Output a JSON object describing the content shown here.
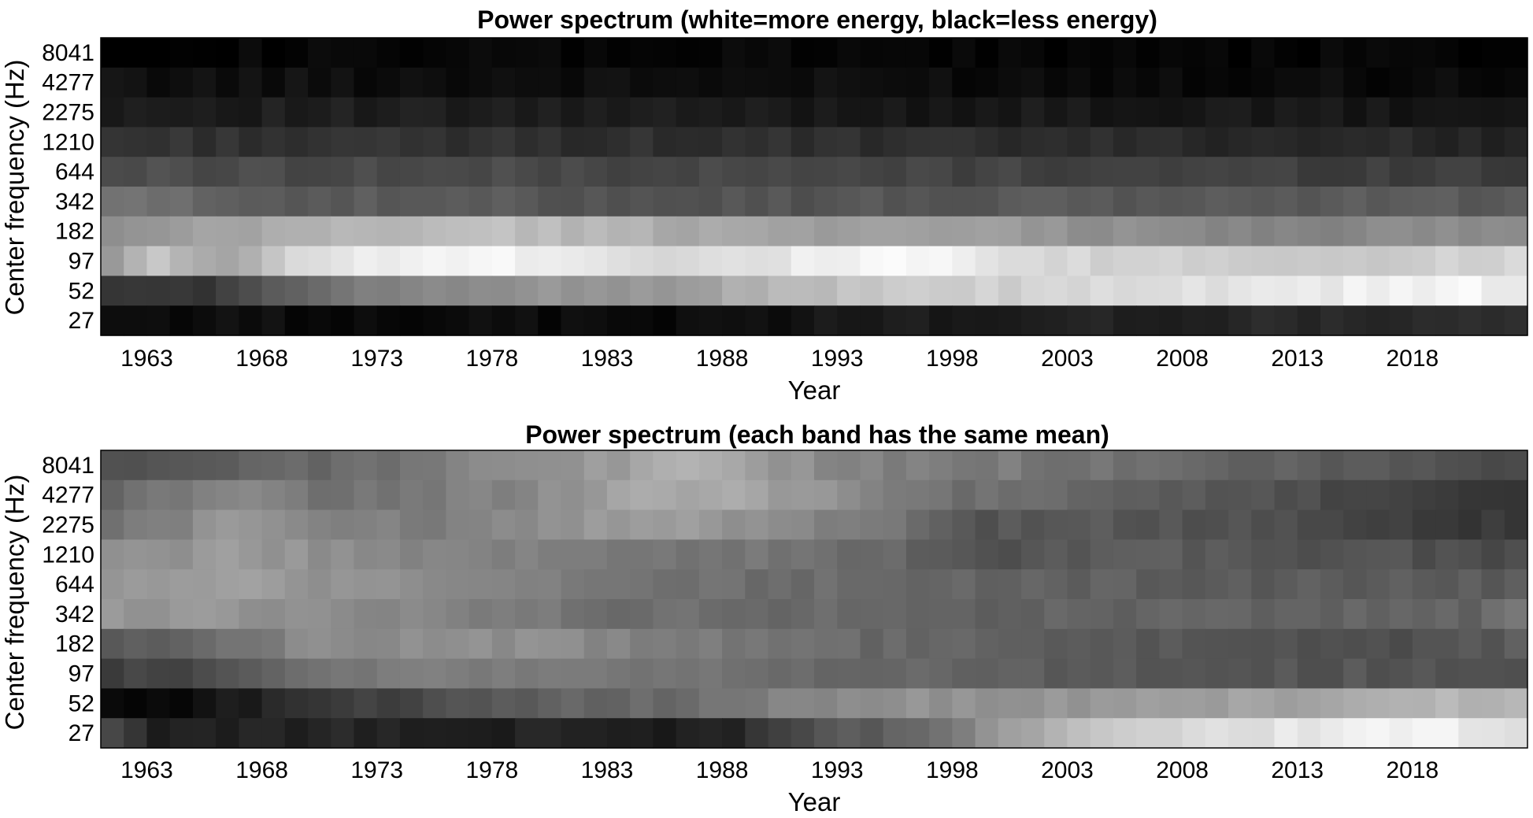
{
  "chart_data": [
    {
      "type": "heatmap",
      "title": "Power spectrum (white=more energy, black=less energy)",
      "xlabel": "Year",
      "ylabel": "Center frequency (Hz)",
      "xticks": [
        "1963",
        "1968",
        "1973",
        "1978",
        "1983",
        "1988",
        "1993",
        "1998",
        "2003",
        "2008",
        "2013",
        "2018"
      ],
      "xlim": [
        1961,
        2023
      ],
      "x_first": 1961,
      "x_last": 2022,
      "colormap": "gray (white=high, black=low)",
      "rows": [
        {
          "label": "8041",
          "keyframes": [
            [
              1961,
              0.02
            ],
            [
              2022,
              0.02
            ]
          ]
        },
        {
          "label": "4277",
          "keyframes": [
            [
              1961,
              0.06
            ],
            [
              1990,
              0.05
            ],
            [
              2022,
              0.04
            ]
          ]
        },
        {
          "label": "2275",
          "keyframes": [
            [
              1961,
              0.12
            ],
            [
              1990,
              0.1
            ],
            [
              2022,
              0.08
            ]
          ]
        },
        {
          "label": "1210",
          "keyframes": [
            [
              1961,
              0.2
            ],
            [
              1990,
              0.18
            ],
            [
              2022,
              0.15
            ]
          ]
        },
        {
          "label": "644",
          "keyframes": [
            [
              1961,
              0.3
            ],
            [
              1990,
              0.27
            ],
            [
              2022,
              0.24
            ]
          ]
        },
        {
          "label": "342",
          "keyframes": [
            [
              1961,
              0.45
            ],
            [
              1963,
              0.42
            ],
            [
              1970,
              0.35
            ],
            [
              1990,
              0.33
            ],
            [
              2022,
              0.36
            ]
          ]
        },
        {
          "label": "182",
          "keyframes": [
            [
              1961,
              0.55
            ],
            [
              1970,
              0.7
            ],
            [
              1978,
              0.75
            ],
            [
              1988,
              0.65
            ],
            [
              2000,
              0.6
            ],
            [
              2010,
              0.52
            ],
            [
              2022,
              0.55
            ]
          ]
        },
        {
          "label": "97",
          "keyframes": [
            [
              1961,
              0.62
            ],
            [
              1963,
              0.78
            ],
            [
              1966,
              0.62
            ],
            [
              1968,
              0.8
            ],
            [
              1972,
              0.93
            ],
            [
              1975,
              0.98
            ],
            [
              1980,
              0.94
            ],
            [
              1985,
              0.86
            ],
            [
              1990,
              0.9
            ],
            [
              1994,
              0.97
            ],
            [
              1998,
              0.93
            ],
            [
              2000,
              0.85
            ],
            [
              2005,
              0.82
            ],
            [
              2012,
              0.8
            ],
            [
              2018,
              0.8
            ],
            [
              2022,
              0.84
            ]
          ]
        },
        {
          "label": "52",
          "keyframes": [
            [
              1961,
              0.22
            ],
            [
              1964,
              0.2
            ],
            [
              1966,
              0.25
            ],
            [
              1970,
              0.42
            ],
            [
              1975,
              0.55
            ],
            [
              1980,
              0.58
            ],
            [
              1985,
              0.6
            ],
            [
              1990,
              0.72
            ],
            [
              1995,
              0.78
            ],
            [
              2000,
              0.82
            ],
            [
              2005,
              0.85
            ],
            [
              2010,
              0.88
            ],
            [
              2015,
              0.93
            ],
            [
              2020,
              0.97
            ],
            [
              2022,
              0.9
            ]
          ]
        },
        {
          "label": "27",
          "keyframes": [
            [
              1961,
              0.05
            ],
            [
              1985,
              0.04
            ],
            [
              1995,
              0.1
            ],
            [
              2005,
              0.13
            ],
            [
              2015,
              0.16
            ],
            [
              2022,
              0.17
            ]
          ]
        }
      ]
    },
    {
      "type": "heatmap",
      "title": "Power spectrum (each band has the same mean)",
      "xlabel": "Year",
      "ylabel": "Center frequency (Hz)",
      "xticks": [
        "1963",
        "1968",
        "1973",
        "1978",
        "1983",
        "1988",
        "1993",
        "1998",
        "2003",
        "2008",
        "2013",
        "2018"
      ],
      "xlim": [
        1961,
        2023
      ],
      "x_first": 1961,
      "x_last": 2022,
      "colormap": "gray (white=high, black=low)",
      "rows": [
        {
          "label": "8041",
          "keyframes": [
            [
              1961,
              0.32
            ],
            [
              1966,
              0.36
            ],
            [
              1972,
              0.43
            ],
            [
              1978,
              0.55
            ],
            [
              1983,
              0.62
            ],
            [
              1986,
              0.68
            ],
            [
              1990,
              0.58
            ],
            [
              1995,
              0.5
            ],
            [
              2000,
              0.48
            ],
            [
              2008,
              0.4
            ],
            [
              2015,
              0.35
            ],
            [
              2022,
              0.3
            ]
          ]
        },
        {
          "label": "4277",
          "keyframes": [
            [
              1961,
              0.38
            ],
            [
              1966,
              0.55
            ],
            [
              1970,
              0.45
            ],
            [
              1975,
              0.47
            ],
            [
              1980,
              0.56
            ],
            [
              1984,
              0.66
            ],
            [
              1988,
              0.65
            ],
            [
              1991,
              0.6
            ],
            [
              1996,
              0.45
            ],
            [
              2000,
              0.42
            ],
            [
              2010,
              0.32
            ],
            [
              2018,
              0.25
            ],
            [
              2022,
              0.2
            ]
          ]
        },
        {
          "label": "2275",
          "keyframes": [
            [
              1961,
              0.45
            ],
            [
              1966,
              0.58
            ],
            [
              1970,
              0.5
            ],
            [
              1976,
              0.5
            ],
            [
              1982,
              0.6
            ],
            [
              1986,
              0.62
            ],
            [
              1990,
              0.55
            ],
            [
              1995,
              0.45
            ],
            [
              1998,
              0.32
            ],
            [
              2003,
              0.35
            ],
            [
              2012,
              0.3
            ],
            [
              2019,
              0.22
            ],
            [
              2022,
              0.22
            ]
          ]
        },
        {
          "label": "1210",
          "keyframes": [
            [
              1961,
              0.55
            ],
            [
              1966,
              0.6
            ],
            [
              1972,
              0.55
            ],
            [
              1978,
              0.5
            ],
            [
              1985,
              0.47
            ],
            [
              1990,
              0.45
            ],
            [
              1995,
              0.4
            ],
            [
              1998,
              0.32
            ],
            [
              2005,
              0.36
            ],
            [
              2013,
              0.33
            ],
            [
              2022,
              0.3
            ]
          ]
        },
        {
          "label": "644",
          "keyframes": [
            [
              1961,
              0.58
            ],
            [
              1966,
              0.62
            ],
            [
              1972,
              0.57
            ],
            [
              1978,
              0.5
            ],
            [
              1984,
              0.45
            ],
            [
              1990,
              0.43
            ],
            [
              1996,
              0.4
            ],
            [
              2002,
              0.38
            ],
            [
              2012,
              0.36
            ],
            [
              2022,
              0.35
            ]
          ]
        },
        {
          "label": "342",
          "keyframes": [
            [
              1961,
              0.6
            ],
            [
              1966,
              0.58
            ],
            [
              1972,
              0.55
            ],
            [
              1978,
              0.48
            ],
            [
              1984,
              0.43
            ],
            [
              1990,
              0.42
            ],
            [
              1996,
              0.4
            ],
            [
              2003,
              0.38
            ],
            [
              2012,
              0.4
            ],
            [
              2020,
              0.38
            ],
            [
              2022,
              0.45
            ]
          ]
        },
        {
          "label": "182",
          "keyframes": [
            [
              1961,
              0.35
            ],
            [
              1965,
              0.42
            ],
            [
              1970,
              0.55
            ],
            [
              1975,
              0.57
            ],
            [
              1980,
              0.55
            ],
            [
              1985,
              0.48
            ],
            [
              1990,
              0.45
            ],
            [
              1995,
              0.4
            ],
            [
              2000,
              0.37
            ],
            [
              2010,
              0.33
            ],
            [
              2015,
              0.3
            ],
            [
              2022,
              0.35
            ]
          ]
        },
        {
          "label": "97",
          "keyframes": [
            [
              1961,
              0.25
            ],
            [
              1965,
              0.28
            ],
            [
              1970,
              0.45
            ],
            [
              1975,
              0.5
            ],
            [
              1980,
              0.48
            ],
            [
              1986,
              0.45
            ],
            [
              1990,
              0.42
            ],
            [
              1995,
              0.4
            ],
            [
              2000,
              0.37
            ],
            [
              2010,
              0.33
            ],
            [
              2022,
              0.33
            ]
          ]
        },
        {
          "label": "52",
          "keyframes": [
            [
              1961,
              0.05
            ],
            [
              1963,
              0.02
            ],
            [
              1966,
              0.1
            ],
            [
              1970,
              0.2
            ],
            [
              1975,
              0.3
            ],
            [
              1980,
              0.38
            ],
            [
              1985,
              0.42
            ],
            [
              1990,
              0.5
            ],
            [
              1995,
              0.57
            ],
            [
              2000,
              0.58
            ],
            [
              2005,
              0.6
            ],
            [
              2012,
              0.64
            ],
            [
              2018,
              0.7
            ],
            [
              2022,
              0.72
            ]
          ]
        },
        {
          "label": "27",
          "keyframes": [
            [
              1961,
              0.28
            ],
            [
              1963,
              0.1
            ],
            [
              1970,
              0.15
            ],
            [
              1975,
              0.12
            ],
            [
              1980,
              0.14
            ],
            [
              1985,
              0.1
            ],
            [
              1988,
              0.15
            ],
            [
              1991,
              0.3
            ],
            [
              1995,
              0.38
            ],
            [
              1999,
              0.55
            ],
            [
              2003,
              0.75
            ],
            [
              2008,
              0.85
            ],
            [
              2014,
              0.92
            ],
            [
              2018,
              0.95
            ],
            [
              2022,
              0.88
            ]
          ]
        }
      ]
    }
  ]
}
